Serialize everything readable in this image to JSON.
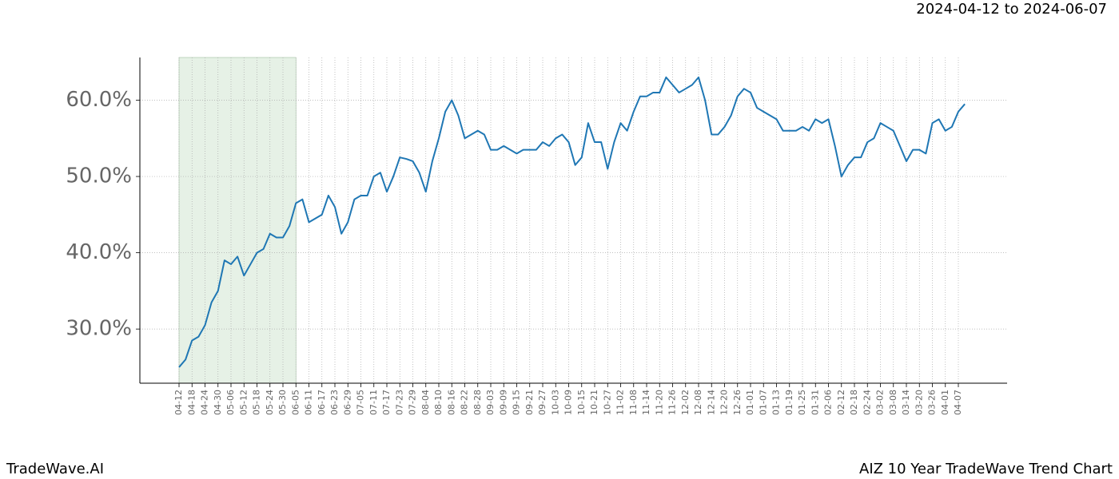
{
  "chart_data": {
    "type": "line",
    "subtitle": "2024-04-12 to 2024-06-07",
    "footer_left": "TradeWave.AI",
    "footer_right": "AIZ 10 Year TradeWave Trend Chart",
    "categories": [
      "04-12",
      null,
      "04-18",
      null,
      "04-24",
      null,
      "04-30",
      null,
      "05-06",
      null,
      "05-12",
      null,
      "05-18",
      null,
      "05-24",
      null,
      "05-30",
      null,
      "06-05",
      null,
      "06-11",
      null,
      "06-17",
      null,
      "06-23",
      null,
      "06-29",
      null,
      "07-05",
      null,
      "07-11",
      null,
      "07-17",
      null,
      "07-23",
      null,
      "07-29",
      null,
      "08-04",
      null,
      "08-10",
      null,
      "08-16",
      null,
      "08-22",
      null,
      "08-28",
      null,
      "09-03",
      null,
      "09-09",
      null,
      "09-15",
      null,
      "09-21",
      null,
      "09-27",
      null,
      "10-03",
      null,
      "10-09",
      null,
      "10-15",
      null,
      "10-21",
      null,
      "10-27",
      null,
      "11-02",
      null,
      "11-08",
      null,
      "11-14",
      null,
      "11-20",
      null,
      "11-26",
      null,
      "12-02",
      null,
      "12-08",
      null,
      "12-14",
      null,
      "12-20",
      null,
      "12-26",
      null,
      "01-01",
      null,
      "01-07",
      null,
      "01-13",
      null,
      "01-19",
      null,
      "01-25",
      null,
      "01-31",
      null,
      "02-06",
      null,
      "02-12",
      null,
      "02-18",
      null,
      "02-24",
      null,
      "03-02",
      null,
      "03-08",
      null,
      "03-14",
      null,
      "03-20",
      null,
      "03-26",
      null,
      "04-01",
      null,
      "04-07",
      null
    ],
    "values": [
      25,
      26,
      28.5,
      29,
      30.5,
      33.5,
      35,
      39,
      38.5,
      39.5,
      37,
      38.5,
      40,
      40.5,
      42.5,
      42,
      42,
      43.5,
      46.5,
      47,
      44,
      44.5,
      45,
      47.5,
      46,
      42.5,
      44,
      47,
      47.5,
      47.5,
      50,
      50.5,
      48,
      50,
      52.5,
      52.3,
      52,
      50.5,
      48,
      52,
      55,
      58.5,
      60,
      58,
      55,
      55.5,
      56,
      55.5,
      53.5,
      53.5,
      54,
      53.5,
      53,
      53.5,
      53.5,
      53.5,
      54.5,
      54,
      55,
      55.5,
      54.5,
      51.5,
      52.5,
      57,
      54.5,
      54.5,
      51,
      54.5,
      57,
      56,
      58.5,
      60.5,
      60.5,
      61,
      61,
      63,
      62,
      61,
      61.5,
      62,
      63,
      60,
      55.5,
      55.5,
      56.5,
      58,
      60.5,
      61.5,
      61,
      59,
      58.5,
      58,
      57.5,
      56,
      56,
      56,
      56.5,
      56,
      57.5,
      57,
      57.5,
      54,
      50,
      51.5,
      52.5,
      52.5,
      54.5,
      55,
      57,
      56.5,
      56,
      54,
      52,
      53.5,
      53.5,
      53,
      57,
      57.5,
      56,
      56.5,
      58.5,
      59.5
    ],
    "color": "#1f77b4",
    "highlight": {
      "start": "04-12",
      "end": "06-05",
      "color": "#e6f1e6"
    },
    "ylim": [
      22.9,
      65.6
    ],
    "yticks": [
      {
        "value": 30,
        "label": "30.0%"
      },
      {
        "value": 40,
        "label": "40.0%"
      },
      {
        "value": 50,
        "label": "50.0%"
      },
      {
        "value": 60,
        "label": "60.0%"
      }
    ],
    "grid": true
  }
}
